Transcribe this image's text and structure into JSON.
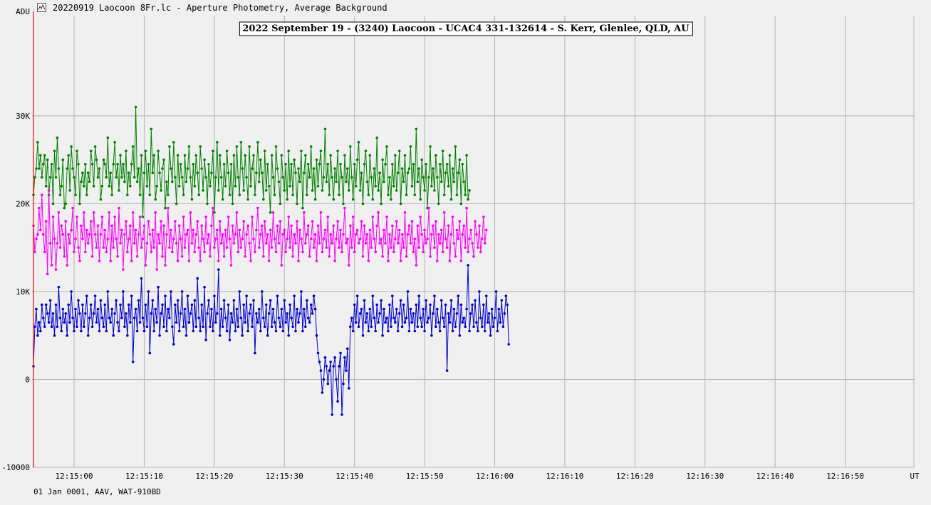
{
  "window": {
    "title": "20220919 Laocoon 8Fr.lc - Aperture Photometry, Average Background",
    "icon": "chart-window-icon"
  },
  "footer": "01 Jan 0001, AAV, WAT-910BD",
  "colors": {
    "background": "#f0f0f0",
    "grid": "#b4b4b4",
    "marker_line": "#ff0000",
    "series": [
      "#008000",
      "#ff00ff",
      "#0000cc"
    ]
  },
  "chart_data": {
    "type": "line",
    "title": "2022 September 19 - (3240) Laocoon - UCAC4 331-132614 - S. Kerr, Glenlee, QLD, AU",
    "ylabel": "ADU",
    "xunit_label": "UT",
    "ylim": [
      -10000,
      41400
    ],
    "xlim": [
      "12:14:54.0",
      "12:16:59.8"
    ],
    "yticks": [
      -10000,
      0,
      10000,
      20000,
      30000
    ],
    "ytick_labels": [
      "-10000",
      "0",
      "10K",
      "20K",
      "30K"
    ],
    "xtick_labels": [
      "12:15:00",
      "12:15:10",
      "12:15:20",
      "12:15:30",
      "12:15:40",
      "12:15:50",
      "12:16:00",
      "12:16:10",
      "12:16:20",
      "12:16:30",
      "12:16:40",
      "12:16:50"
    ],
    "xticks_seconds": [
      6,
      16,
      26,
      36,
      46,
      56,
      66,
      76,
      86,
      96,
      106,
      116
    ],
    "grid": true,
    "sample_interval_s": 0.2,
    "event_marker_s": 0.2,
    "series": [
      {
        "name": "",
        "color": "#008000",
        "values": [
          21000,
          23000,
          24000,
          27000,
          24000,
          25500,
          23000,
          24500,
          25500,
          22000,
          25000,
          21000,
          23000,
          24500,
          20000,
          26000,
          23000,
          27500,
          24000,
          21000,
          22000,
          25000,
          19500,
          20000,
          24000,
          25500,
          21500,
          26500,
          24000,
          23000,
          21000,
          26000,
          24500,
          20000,
          22500,
          23500,
          22000,
          24500,
          21000,
          23500,
          22500,
          26000,
          24500,
          22000,
          26500,
          25000,
          23000,
          24000,
          20500,
          22000,
          25000,
          24500,
          23000,
          27500,
          22000,
          23500,
          21000,
          24500,
          27000,
          23000,
          24500,
          21500,
          25500,
          23000,
          24500,
          22500,
          26000,
          21000,
          23500,
          22000,
          24500,
          26500,
          23000,
          31000,
          22500,
          24000,
          21000,
          25500,
          18500,
          23500,
          26000,
          22000,
          24500,
          21000,
          28500,
          23500,
          25500,
          20500,
          22000,
          26000,
          23500,
          21500,
          24000,
          25000,
          19500,
          22500,
          21000,
          26500,
          24000,
          22500,
          27000,
          23000,
          20000,
          25500,
          22000,
          24500,
          23000,
          21000,
          25500,
          22500,
          24000,
          26500,
          23000,
          20500,
          24500,
          22000,
          25500,
          23500,
          21000,
          26500,
          24000,
          21500,
          25000,
          23000,
          20000,
          24500,
          22000,
          23500,
          26000,
          19000,
          23000,
          27000,
          21500,
          25500,
          23000,
          20500,
          24500,
          22000,
          26000,
          23500,
          21000,
          24500,
          20000,
          25500,
          22000,
          26500,
          23000,
          21000,
          27000,
          24000,
          21500,
          25500,
          23000,
          20500,
          26500,
          22000,
          24000,
          25500,
          21000,
          23500,
          27000,
          22500,
          25000,
          23500,
          20500,
          26000,
          21500,
          24500,
          22000,
          19000,
          25500,
          23000,
          21000,
          26500,
          24000,
          22500,
          20000,
          25500,
          23000,
          21500,
          24500,
          20500,
          26000,
          22000,
          24500,
          21000,
          25000,
          23500,
          20000,
          24000,
          22500,
          26000,
          19500,
          23500,
          25500,
          21000,
          24500,
          23000,
          26500,
          21500,
          24000,
          20500,
          25000,
          22000,
          24500,
          26000,
          21500,
          23000,
          28500,
          22500,
          24500,
          21000,
          25500,
          23000,
          20500,
          24000,
          22500,
          26000,
          21000,
          24500,
          23000,
          20000,
          25500,
          22500,
          24000,
          21500,
          26500,
          23000,
          20500,
          24500,
          22000,
          25000,
          27000,
          21500,
          23500,
          20000,
          24500,
          26000,
          22500,
          21000,
          25500,
          23000,
          20500,
          24000,
          22000,
          27500,
          21500,
          23500,
          20000,
          25000,
          22500,
          24500,
          26500,
          21000,
          23000,
          20500,
          24500,
          22000,
          25500,
          21500,
          23500,
          26000,
          20000,
          24000,
          22500,
          25500,
          21000,
          23500,
          24000,
          26500,
          22000,
          24500,
          21000,
          28500,
          22500,
          24000,
          20500,
          25000,
          23000,
          21500,
          24500,
          19500,
          23000,
          26500,
          22000,
          24000,
          21500,
          25500,
          23000,
          20000,
          24500,
          22500,
          26000,
          21000,
          23500,
          24500,
          22000,
          25500,
          20500,
          24000,
          22500,
          26500,
          21000,
          23500,
          25000,
          20000,
          24500,
          22500,
          21000,
          25500,
          20500,
          21500
        ]
      },
      {
        "name": "",
        "color": "#ff00ff",
        "values": [
          17500,
          14500,
          16000,
          16500,
          19500,
          17000,
          21000,
          16500,
          14500,
          18000,
          12000,
          21500,
          15500,
          13000,
          18500,
          16000,
          12500,
          15500,
          19000,
          15000,
          17500,
          16500,
          14000,
          18000,
          13000,
          16500,
          15500,
          17000,
          19500,
          14500,
          16000,
          18500,
          15000,
          13500,
          17500,
          16000,
          19000,
          14500,
          17000,
          15500,
          16500,
          18000,
          14000,
          19000,
          16500,
          15000,
          17500,
          13500,
          16500,
          18500,
          15000,
          17000,
          14500,
          16000,
          19000,
          13500,
          17500,
          15000,
          18500,
          16000,
          14000,
          19500,
          15500,
          17000,
          12500,
          16500,
          18000,
          14500,
          16000,
          17500,
          13500,
          19000,
          15500,
          17000,
          14000,
          16500,
          18500,
          15000,
          16000,
          17500,
          13000,
          15500,
          18000,
          16500,
          14500,
          17000,
          15000,
          19000,
          12500,
          16500,
          15500,
          18000,
          14000,
          17500,
          13000,
          16500,
          19500,
          15000,
          17000,
          14500,
          16000,
          18000,
          15500,
          13500,
          17500,
          16000,
          14000,
          18500,
          15000,
          16500,
          17000,
          13500,
          19000,
          15500,
          17000,
          14500,
          16500,
          18000,
          15000,
          13500,
          17500,
          16000,
          14500,
          18500,
          15500,
          16500,
          14000,
          17500,
          19500,
          15000,
          16000,
          17000,
          13500,
          18000,
          15500,
          16500,
          14000,
          17000,
          15000,
          18500,
          16000,
          13000,
          17500,
          15500,
          16500,
          19000,
          14500,
          17000,
          15000,
          16000,
          18000,
          14000,
          16500,
          17500,
          15500,
          13500,
          18500,
          16000,
          14500,
          17000,
          19500,
          15000,
          16500,
          17500,
          14000,
          18000,
          15500,
          16500,
          13500,
          17000,
          15000,
          19000,
          16000,
          14500,
          17500,
          15500,
          18000,
          13000,
          16500,
          17000,
          14500,
          16000,
          18500,
          15000,
          17500,
          14000,
          16500,
          15500,
          18000,
          13500,
          17000,
          16000,
          14500,
          19000,
          15500,
          16500,
          17500,
          14000,
          16000,
          18000,
          15000,
          16500,
          13500,
          17500,
          15500,
          19000,
          14500,
          16000,
          17000,
          15000,
          18500,
          14000,
          16500,
          15500,
          17500,
          13500,
          16000,
          18000,
          15000,
          17000,
          14500,
          16500,
          19500,
          15500,
          16000,
          13000,
          17500,
          15000,
          18500,
          14500,
          16500,
          17000,
          15500,
          16000,
          18000,
          14000,
          17500,
          15500,
          16500,
          13500,
          17000,
          15000,
          18500,
          16000,
          14500,
          17500,
          19000,
          15500,
          16000,
          14000,
          17000,
          15500,
          18500,
          13500,
          16500,
          15000,
          17500,
          14500,
          16000,
          18000,
          15500,
          17000,
          13500,
          16500,
          15000,
          19000,
          14000,
          16500,
          17500,
          15500,
          18000,
          14500,
          16000,
          13000,
          17500,
          15000,
          18500,
          16500,
          14500,
          17000,
          15500,
          16000,
          19500,
          14000,
          16500,
          17500,
          15000,
          18000,
          13500,
          16500,
          15500,
          17000,
          14500,
          19000,
          16000,
          15000,
          17500,
          13500,
          16500,
          18500,
          15500,
          14000,
          17000,
          16000,
          18000,
          13500,
          16500,
          17500,
          15000,
          19500,
          14500,
          16000,
          17000,
          15500,
          14000,
          18000,
          16500,
          15000,
          17500,
          14500,
          16000,
          18500,
          15500,
          17000
        ]
      },
      {
        "name": "",
        "color": "#0000cc",
        "values": [
          1500,
          6000,
          8000,
          5000,
          6500,
          5500,
          8500,
          7000,
          6000,
          8500,
          7500,
          6500,
          9000,
          6000,
          7500,
          5000,
          8500,
          6000,
          10500,
          7000,
          5500,
          8000,
          6500,
          7500,
          5000,
          8500,
          6500,
          10000,
          7000,
          5500,
          8000,
          6000,
          9000,
          7500,
          5500,
          8500,
          6000,
          7500,
          9500,
          5000,
          7000,
          8500,
          6000,
          7500,
          9500,
          6500,
          8000,
          5500,
          9000,
          7000,
          6000,
          8500,
          5500,
          10000,
          7000,
          6500,
          8000,
          5000,
          7500,
          9000,
          6500,
          5500,
          8500,
          7000,
          10000,
          6000,
          7500,
          5000,
          8500,
          6500,
          9500,
          2000,
          7000,
          8000,
          5500,
          9000,
          6500,
          11500,
          7000,
          5500,
          8500,
          6000,
          10000,
          3000,
          7500,
          9000,
          5500,
          8000,
          6500,
          10500,
          5000,
          7500,
          8500,
          6000,
          9500,
          5500,
          8000,
          7000,
          10000,
          6000,
          4000,
          8500,
          6500,
          9000,
          5500,
          7500,
          10000,
          6000,
          8000,
          5000,
          9500,
          6500,
          7500,
          8500,
          5500,
          9000,
          6000,
          11500,
          7000,
          5500,
          8500,
          6000,
          10500,
          4500,
          7500,
          9000,
          6000,
          8000,
          5500,
          9500,
          6500,
          7500,
          12500,
          5000,
          8000,
          6000,
          9000,
          7000,
          5500,
          8500,
          4500,
          7500,
          6500,
          9000,
          5500,
          8000,
          6000,
          10000,
          7000,
          5000,
          8500,
          6500,
          9500,
          5500,
          7500,
          8500,
          6000,
          9000,
          3000,
          7500,
          6500,
          8000,
          5500,
          10000,
          7000,
          6000,
          8500,
          5000,
          7500,
          9000,
          6000,
          8000,
          6500,
          5500,
          9500,
          7000,
          6000,
          8000,
          5500,
          9000,
          6500,
          7500,
          5000,
          8500,
          7000,
          6000,
          9500,
          5500,
          8000,
          6500,
          7500,
          10000,
          5500,
          8000,
          6000,
          9000,
          7000,
          6500,
          8500,
          7500,
          9500,
          8000,
          5000,
          3000,
          2000,
          1000,
          -1500,
          0,
          2500,
          1500,
          -500,
          1000,
          2000,
          -4000,
          1500,
          2500,
          0,
          -2500,
          1500,
          3000,
          -4000,
          -500,
          2500,
          1000,
          3500,
          -1000,
          6000,
          7000,
          5500,
          8500,
          6500,
          9500,
          6000,
          7500,
          8000,
          5000,
          9000,
          6500,
          7500,
          5500,
          8000,
          6000,
          9500,
          7000,
          5500,
          8500,
          6500,
          7500,
          9000,
          5000,
          8000,
          6500,
          7000,
          5500,
          8500,
          6000,
          9500,
          7000,
          6500,
          8000,
          5500,
          7500,
          9000,
          6000,
          8500,
          6500,
          7000,
          10000,
          5500,
          8000,
          6500,
          7500,
          5500,
          8500,
          6000,
          9500,
          7000,
          6000,
          8000,
          5500,
          9000,
          6500,
          7000,
          8500,
          5000,
          7500,
          9500,
          6000,
          8000,
          6500,
          5500,
          9000,
          7000,
          6000,
          8500,
          1000,
          7500,
          6500,
          9000,
          5500,
          8000,
          6000,
          7500,
          9500,
          5000,
          8500,
          6500,
          7000,
          6000,
          8000,
          13000,
          5500,
          7500,
          8500,
          6000,
          9000,
          6500,
          5500,
          10000,
          7000,
          6000,
          8500,
          5500,
          9500,
          6500,
          7500,
          5000,
          8000,
          6000,
          7000,
          10000,
          5500,
          8000,
          6500,
          9000,
          6000,
          7500,
          9500,
          8500,
          4000
        ]
      }
    ]
  }
}
